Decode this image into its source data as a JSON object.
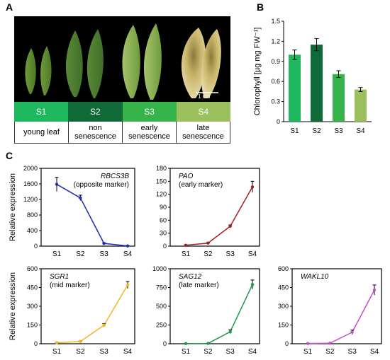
{
  "panels": {
    "A": "A",
    "B": "B",
    "C": "C"
  },
  "photo": {
    "scale_bar": "1 cm"
  },
  "stages": [
    {
      "label": "S1",
      "desc": [
        "young leaf"
      ],
      "color": "#1fb85e"
    },
    {
      "label": "S2",
      "desc": [
        "non",
        "senescence"
      ],
      "color": "#0f6a37"
    },
    {
      "label": "S3",
      "desc": [
        "early",
        "senescence"
      ],
      "color": "#36b34a"
    },
    {
      "label": "S4",
      "desc": [
        "late",
        "senescence"
      ],
      "color": "#9cc05e"
    }
  ],
  "chart_data": [
    {
      "id": "chlorophyll",
      "type": "bar",
      "categories": [
        "S1",
        "S2",
        "S3",
        "S4"
      ],
      "values": [
        1.0,
        1.15,
        0.71,
        0.48
      ],
      "errors": [
        0.07,
        0.09,
        0.05,
        0.03
      ],
      "colors": [
        "#1fb85e",
        "#0f6a37",
        "#36b34a",
        "#9cc05e"
      ],
      "ylabel": "Chlorophyll [µg mg FW⁻¹]",
      "ylim": [
        0,
        1.5
      ],
      "yticks": [
        "0",
        "0.3",
        "0.6",
        "0.9",
        "1.2",
        "1.5"
      ]
    },
    {
      "id": "RBCS3B",
      "type": "line",
      "gene": "RBCS3B",
      "note": "(opposite marker)",
      "categories": [
        "S1",
        "S2",
        "S3",
        "S4"
      ],
      "values": [
        1590,
        1240,
        70,
        5
      ],
      "errors": [
        180,
        70,
        15,
        3
      ],
      "color": "#1a2eb4",
      "ylim": [
        0,
        2000
      ],
      "yticks": [
        "0",
        "400",
        "800",
        "1200",
        "1600",
        "2000"
      ],
      "ylabel": "Relative  expression"
    },
    {
      "id": "PAO",
      "type": "line",
      "gene": "PAO",
      "note": "(early marker)",
      "categories": [
        "S1",
        "S2",
        "S3",
        "S4"
      ],
      "values": [
        2,
        7,
        46,
        137
      ],
      "errors": [
        1,
        1,
        3,
        13
      ],
      "color": "#a52020",
      "ylim": [
        0,
        180
      ],
      "yticks": [
        "0",
        "30",
        "60",
        "90",
        "120",
        "150",
        "180"
      ]
    },
    {
      "id": "SGR1",
      "type": "line",
      "gene": "SGR1",
      "note": "(mid marker)",
      "categories": [
        "S1",
        "S2",
        "S3",
        "S4"
      ],
      "values": [
        8,
        18,
        148,
        470
      ],
      "errors": [
        3,
        3,
        12,
        28
      ],
      "color": "#f2b71c",
      "ylim": [
        0,
        600
      ],
      "yticks": [
        "0",
        "150",
        "300",
        "450",
        "600"
      ],
      "ylabel": "Relative  expression"
    },
    {
      "id": "SAG12",
      "type": "line",
      "gene": "SAG12",
      "note": "(late marker)",
      "categories": [
        "S1",
        "S2",
        "S3",
        "S4"
      ],
      "values": [
        2,
        4,
        160,
        790
      ],
      "errors": [
        1,
        1,
        25,
        60
      ],
      "color": "#1f9a4c",
      "ylim": [
        0,
        1000
      ],
      "yticks": [
        "0",
        "250",
        "500",
        "750",
        "1000"
      ]
    },
    {
      "id": "WAKL10",
      "type": "line",
      "gene": "WAKL10",
      "note": "",
      "categories": [
        "S1",
        "S2",
        "S3",
        "S4"
      ],
      "values": [
        2,
        4,
        92,
        430
      ],
      "errors": [
        1,
        1,
        17,
        40
      ],
      "color": "#c64fc8",
      "ylim": [
        0,
        600
      ],
      "yticks": [
        "0",
        "150",
        "300",
        "450",
        "600"
      ]
    }
  ]
}
